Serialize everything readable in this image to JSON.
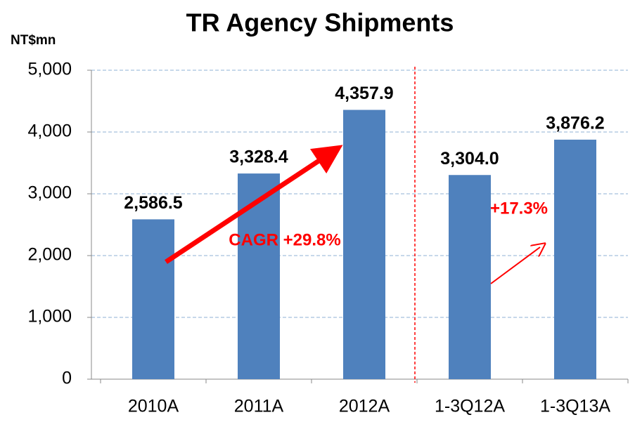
{
  "chart_data": {
    "type": "bar",
    "title": "TR Agency Shipments",
    "y_axis_label": "NT$mn",
    "categories": [
      "2010A",
      "2011A",
      "2012A",
      "1-3Q12A",
      "1-3Q13A"
    ],
    "values": [
      2586.5,
      3328.4,
      4357.9,
      3304.0,
      3876.2
    ],
    "value_labels": [
      "2,586.5",
      "3,328.4",
      "4,357.9",
      "3,304.0",
      "3,876.2"
    ],
    "color": "#4f81bd",
    "ylim": [
      0,
      5000
    ],
    "yticks": [
      0,
      {
        "value": 1000,
        "label": "1,000"
      },
      {
        "value": 2000,
        "label": "2,000"
      },
      {
        "value": 3000,
        "label": "3,000"
      },
      {
        "value": 4000,
        "label": "4,000"
      },
      {
        "value": 5000,
        "label": "5,000"
      }
    ],
    "grid": true,
    "annotations": [
      "CAGR +29.8%",
      "+17.3%"
    ]
  }
}
